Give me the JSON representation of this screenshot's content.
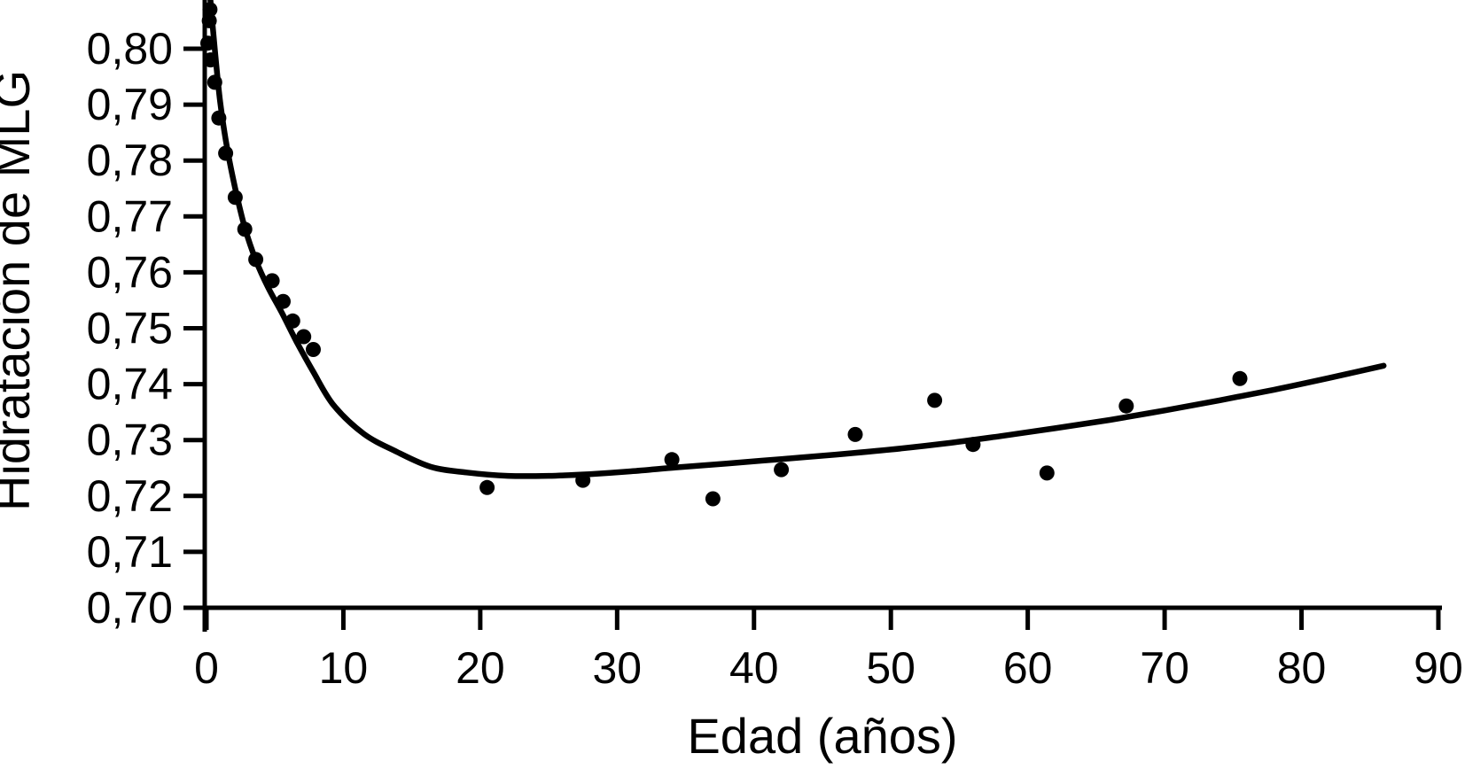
{
  "figure": {
    "background_color": "#ffffff",
    "ink_color": "#000000"
  },
  "chart_data": {
    "type": "scatter",
    "title": "",
    "xlabel": "Edad (años)",
    "ylabel": "Hidratación de MLG",
    "xlim": [
      0,
      90
    ],
    "ylim": [
      0.7,
      0.809
    ],
    "grid": false,
    "legend": "none",
    "x_ticks": [
      0,
      10,
      20,
      30,
      40,
      50,
      60,
      70,
      80,
      90
    ],
    "x_tick_labels": [
      "0",
      "10",
      "20",
      "30",
      "40",
      "50",
      "60",
      "70",
      "80",
      "90"
    ],
    "y_ticks": [
      0.7,
      0.71,
      0.72,
      0.73,
      0.74,
      0.75,
      0.76,
      0.77,
      0.78,
      0.79,
      0.8
    ],
    "y_tick_labels": [
      "0,70",
      "0,71",
      "0,72",
      "0,73",
      "0,74",
      "0,75",
      "0,76",
      "0,77",
      "0,78",
      "0,79",
      "0,80"
    ],
    "decimal_separator": ",",
    "series": [
      {
        "name": "observations",
        "type": "scatter",
        "marker": "filled-circle",
        "marker_diameter_px": 17,
        "color": "#000000",
        "points": [
          [
            0.1,
            0.801
          ],
          [
            0.2,
            0.805
          ],
          [
            0.25,
            0.807
          ],
          [
            0.3,
            0.798
          ],
          [
            0.6,
            0.794
          ],
          [
            0.9,
            0.7876
          ],
          [
            1.4,
            0.7813
          ],
          [
            2.1,
            0.7734
          ],
          [
            2.8,
            0.7677
          ],
          [
            3.6,
            0.7623
          ],
          [
            4.8,
            0.7585
          ],
          [
            5.6,
            0.7548
          ],
          [
            6.3,
            0.7513
          ],
          [
            7.1,
            0.7485
          ],
          [
            7.8,
            0.7462
          ],
          [
            20.5,
            0.7215
          ],
          [
            27.5,
            0.7228
          ],
          [
            34.0,
            0.7265
          ],
          [
            37.0,
            0.7195
          ],
          [
            42.0,
            0.7247
          ],
          [
            47.4,
            0.731
          ],
          [
            53.2,
            0.7371
          ],
          [
            56.0,
            0.7292
          ],
          [
            61.4,
            0.7241
          ],
          [
            67.2,
            0.7361
          ],
          [
            75.5,
            0.741
          ]
        ]
      },
      {
        "name": "fitted-curve",
        "type": "line",
        "color": "#000000",
        "stroke_width_px": 6.5,
        "points": [
          [
            0.26,
            0.8095
          ],
          [
            0.6,
            0.8
          ],
          [
            1.0,
            0.7905
          ],
          [
            1.5,
            0.7823
          ],
          [
            2.1,
            0.775
          ],
          [
            2.8,
            0.768
          ],
          [
            3.6,
            0.7622
          ],
          [
            4.5,
            0.7573
          ],
          [
            5.5,
            0.7528
          ],
          [
            6.6,
            0.7475
          ],
          [
            7.8,
            0.7422
          ],
          [
            9.3,
            0.7362
          ],
          [
            11.5,
            0.7311
          ],
          [
            13.9,
            0.7279
          ],
          [
            16.4,
            0.7252
          ],
          [
            19.0,
            0.7242
          ],
          [
            22.0,
            0.7236
          ],
          [
            25.0,
            0.7236
          ],
          [
            28.0,
            0.7239
          ],
          [
            31.0,
            0.7244
          ],
          [
            34.3,
            0.7251
          ],
          [
            38.0,
            0.7258
          ],
          [
            42.0,
            0.7266
          ],
          [
            46.0,
            0.7274
          ],
          [
            50.0,
            0.7283
          ],
          [
            54.0,
            0.7294
          ],
          [
            58.0,
            0.7307
          ],
          [
            62.0,
            0.7321
          ],
          [
            66.0,
            0.7336
          ],
          [
            70.0,
            0.7353
          ],
          [
            74.0,
            0.7371
          ],
          [
            78.0,
            0.739
          ],
          [
            82.0,
            0.7411
          ],
          [
            86.0,
            0.7433
          ]
        ]
      }
    ]
  }
}
